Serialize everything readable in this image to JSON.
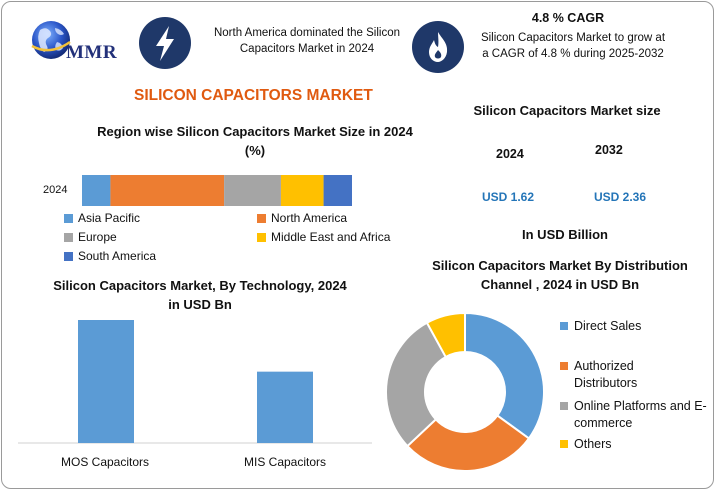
{
  "brand": {
    "logo_text": "MMR",
    "logo_icon": "globe-icon"
  },
  "header": {
    "left_icon": "lightning-bolt-icon",
    "left_text": "North America dominated the Silicon Capacitors Market in 2024",
    "right_icon": "flame-icon",
    "cagr_title": "4.8 % CAGR",
    "cagr_text": "Silicon Capacitors Market to grow at a CAGR of 4.8 % during 2025-2032"
  },
  "main_title": "SILICON CAPACITORS MARKET",
  "colors": {
    "asia_pacific": "#5b9bd5",
    "north_america": "#ed7d31",
    "europe": "#a5a5a5",
    "middle_east_africa": "#ffc000",
    "south_america": "#4472c4",
    "accent_title": "#e05a10",
    "usd_values": "#2475b8",
    "icon_bg": "#1f3869"
  },
  "market_size": {
    "title": "Silicon Capacitors Market size",
    "year_a": "2024",
    "year_b": "2032",
    "value_a": "USD 1.62",
    "value_b": "USD 2.36",
    "unit_note": "In USD Billion"
  },
  "chart_data": [
    {
      "type": "bar",
      "orientation": "horizontal-stacked",
      "title": "Region wise Silicon Capacitors Market Size in 2024 (%)",
      "categories": [
        "2024"
      ],
      "series": [
        {
          "name": "Asia Pacific",
          "values": [
            10
          ]
        },
        {
          "name": "North America",
          "values": [
            40
          ]
        },
        {
          "name": "Europe",
          "values": [
            20
          ]
        },
        {
          "name": "Middle East and Africa",
          "values": [
            15
          ]
        },
        {
          "name": "South America",
          "values": [
            10
          ]
        }
      ],
      "xlim": [
        0,
        95
      ],
      "legend": "bottom"
    },
    {
      "type": "bar",
      "title": "Silicon Capacitors Market, By Technology, 2024 in USD Bn",
      "categories": [
        "MOS Capacitors",
        "MIS Capacitors"
      ],
      "values": [
        1.0,
        0.58
      ],
      "ylim": [
        0,
        1.0
      ],
      "grid": false
    },
    {
      "type": "pie",
      "style": "donut",
      "title": "Silicon Capacitors Market By Distribution Channel , 2024 in USD Bn",
      "categories": [
        "Direct Sales",
        "Authorized Distributors",
        "Online Platforms and E-commerce",
        "Others"
      ],
      "values": [
        35,
        28,
        29,
        8
      ],
      "legend": "right"
    }
  ]
}
